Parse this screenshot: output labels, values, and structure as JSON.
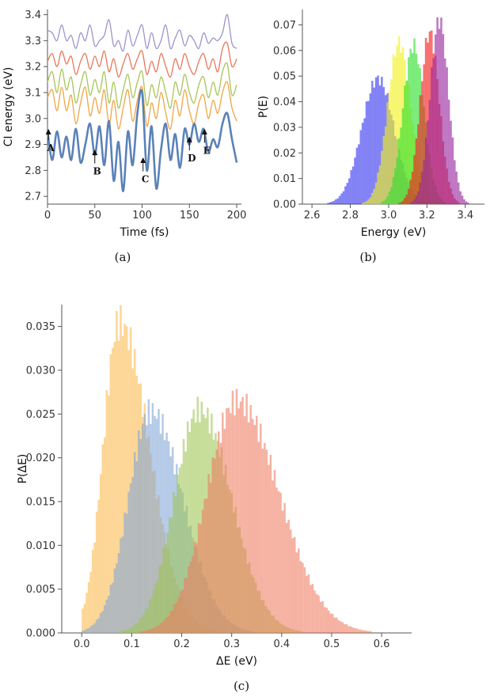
{
  "chart_data": [
    {
      "id": "a",
      "type": "line",
      "caption": "(a)",
      "xlabel": "Time (fs)",
      "ylabel": "CI energy (eV)",
      "xlim": [
        0,
        205
      ],
      "ylim": [
        2.67,
        3.42
      ],
      "xticks": [
        "0",
        "50",
        "100",
        "150",
        "200"
      ],
      "yticks": [
        "2.7",
        "2.8",
        "2.9",
        "3.0",
        "3.1",
        "3.2",
        "3.3",
        "3.4"
      ],
      "x": [
        0,
        5,
        10,
        15,
        20,
        25,
        30,
        35,
        40,
        45,
        50,
        55,
        60,
        65,
        70,
        75,
        80,
        85,
        90,
        95,
        100,
        105,
        110,
        115,
        120,
        125,
        130,
        135,
        140,
        145,
        150,
        155,
        160,
        165,
        170,
        175,
        180,
        185,
        190,
        195,
        200
      ],
      "series": [
        {
          "color": "#9d93cc",
          "values": [
            3.34,
            3.33,
            3.3,
            3.36,
            3.3,
            3.32,
            3.27,
            3.33,
            3.3,
            3.36,
            3.28,
            3.3,
            3.32,
            3.38,
            3.28,
            3.3,
            3.26,
            3.34,
            3.28,
            3.32,
            3.36,
            3.27,
            3.33,
            3.27,
            3.3,
            3.36,
            3.27,
            3.31,
            3.34,
            3.28,
            3.32,
            3.3,
            3.27,
            3.33,
            3.29,
            3.31,
            3.3,
            3.33,
            3.4,
            3.29,
            3.27
          ]
        },
        {
          "color": "#e8765a",
          "values": [
            3.22,
            3.25,
            3.2,
            3.26,
            3.21,
            3.24,
            3.17,
            3.22,
            3.25,
            3.19,
            3.24,
            3.2,
            3.26,
            3.18,
            3.23,
            3.16,
            3.21,
            3.25,
            3.19,
            3.23,
            3.26,
            3.17,
            3.22,
            3.18,
            3.25,
            3.2,
            3.16,
            3.23,
            3.19,
            3.25,
            3.2,
            3.17,
            3.22,
            3.25,
            3.19,
            3.23,
            3.18,
            3.27,
            3.29,
            3.2,
            3.23
          ]
        },
        {
          "color": "#a8c455",
          "values": [
            3.14,
            3.18,
            3.1,
            3.19,
            3.11,
            3.16,
            3.06,
            3.13,
            3.18,
            3.09,
            3.15,
            3.1,
            3.18,
            3.06,
            3.14,
            3.04,
            3.11,
            3.17,
            3.08,
            3.14,
            3.18,
            3.05,
            3.13,
            3.08,
            3.16,
            3.1,
            3.04,
            3.14,
            3.09,
            3.17,
            3.1,
            3.06,
            3.13,
            3.16,
            3.08,
            3.14,
            3.09,
            3.18,
            3.21,
            3.09,
            3.13
          ]
        },
        {
          "color": "#f0a545",
          "values": [
            3.08,
            3.11,
            3.03,
            3.12,
            3.03,
            3.09,
            2.98,
            3.06,
            3.12,
            3.01,
            3.08,
            3.02,
            3.11,
            2.98,
            3.07,
            2.96,
            3.04,
            3.11,
            2.99,
            3.07,
            3.12,
            2.97,
            3.06,
            3.0,
            3.1,
            3.02,
            2.96,
            3.07,
            3.01,
            3.11,
            3.03,
            2.98,
            3.06,
            3.09,
            3.0,
            3.07,
            3.02,
            3.1,
            3.14,
            3.04,
            2.99
          ]
        },
        {
          "color": "#5b82b8",
          "values": [
            2.95,
            2.84,
            2.95,
            2.85,
            2.93,
            2.84,
            2.96,
            2.83,
            2.9,
            2.98,
            2.86,
            2.97,
            2.82,
            2.99,
            2.76,
            2.91,
            2.72,
            2.95,
            2.82,
            3.02,
            3.1,
            2.8,
            2.97,
            2.73,
            2.88,
            2.98,
            2.84,
            2.94,
            2.81,
            2.96,
            2.9,
            2.98,
            2.91,
            2.96,
            2.87,
            2.92,
            2.89,
            2.98,
            3.02,
            2.92,
            2.83
          ]
        }
      ],
      "annotations": [
        {
          "label": "A",
          "x": 1,
          "y_tip": 2.96,
          "y_text": 2.88
        },
        {
          "label": "B",
          "x": 50,
          "y_tip": 2.88,
          "y_text": 2.79
        },
        {
          "label": "C",
          "x": 101,
          "y_tip": 2.85,
          "y_text": 2.76
        },
        {
          "label": "D",
          "x": 150,
          "y_tip": 2.93,
          "y_text": 2.84
        },
        {
          "label": "E",
          "x": 166,
          "y_tip": 2.96,
          "y_text": 2.87
        }
      ]
    },
    {
      "id": "b",
      "type": "bar",
      "caption": "(b)",
      "xlabel": "Energy (eV)",
      "ylabel": "P(E)",
      "xlim": [
        2.55,
        3.5
      ],
      "ylim": [
        0,
        0.076
      ],
      "xticks": [
        "2.6",
        "2.8",
        "3.0",
        "3.2",
        "3.4"
      ],
      "yticks": [
        "0.00",
        "0.01",
        "0.02",
        "0.03",
        "0.04",
        "0.05",
        "0.06",
        "0.07"
      ],
      "bin_width": 0.01,
      "series": [
        {
          "color": "#3a3af0",
          "center": 2.945,
          "sigma": 0.085,
          "peak": 0.049
        },
        {
          "color": "#f2f21e",
          "center": 3.055,
          "sigma": 0.06,
          "peak": 0.063
        },
        {
          "color": "#2ee02e",
          "center": 3.13,
          "sigma": 0.055,
          "peak": 0.062
        },
        {
          "color": "#f21e1e",
          "center": 3.215,
          "sigma": 0.05,
          "peak": 0.067
        },
        {
          "color": "#9a28a0",
          "center": 3.265,
          "sigma": 0.048,
          "peak": 0.072
        }
      ]
    },
    {
      "id": "c",
      "type": "bar",
      "caption": "(c)",
      "xlabel": "ΔE (eV)",
      "ylabel": "P(ΔE)",
      "xlim": [
        -0.04,
        0.66
      ],
      "ylim": [
        0,
        0.0375
      ],
      "xticks": [
        "0.0",
        "0.1",
        "0.2",
        "0.3",
        "0.4",
        "0.5",
        "0.6"
      ],
      "yticks": [
        "0.000",
        "0.005",
        "0.010",
        "0.015",
        "0.020",
        "0.025",
        "0.030",
        "0.035"
      ],
      "bin_width": 0.004,
      "series": [
        {
          "color": "#f9b84a",
          "center": 0.075,
          "sigma_left": 0.032,
          "sigma_right": 0.06,
          "peak": 0.0355,
          "start": 0.0
        },
        {
          "color": "#7fa3d6",
          "center": 0.138,
          "sigma_left": 0.045,
          "sigma_right": 0.065,
          "peak": 0.0253,
          "start": 0.0
        },
        {
          "color": "#9cc450",
          "center": 0.235,
          "sigma_left": 0.05,
          "sigma_right": 0.065,
          "peak": 0.0255,
          "start": 0.05
        },
        {
          "color": "#ee7b5e",
          "center": 0.31,
          "sigma_left": 0.06,
          "sigma_right": 0.085,
          "peak": 0.0265,
          "start": 0.08
        }
      ]
    }
  ]
}
